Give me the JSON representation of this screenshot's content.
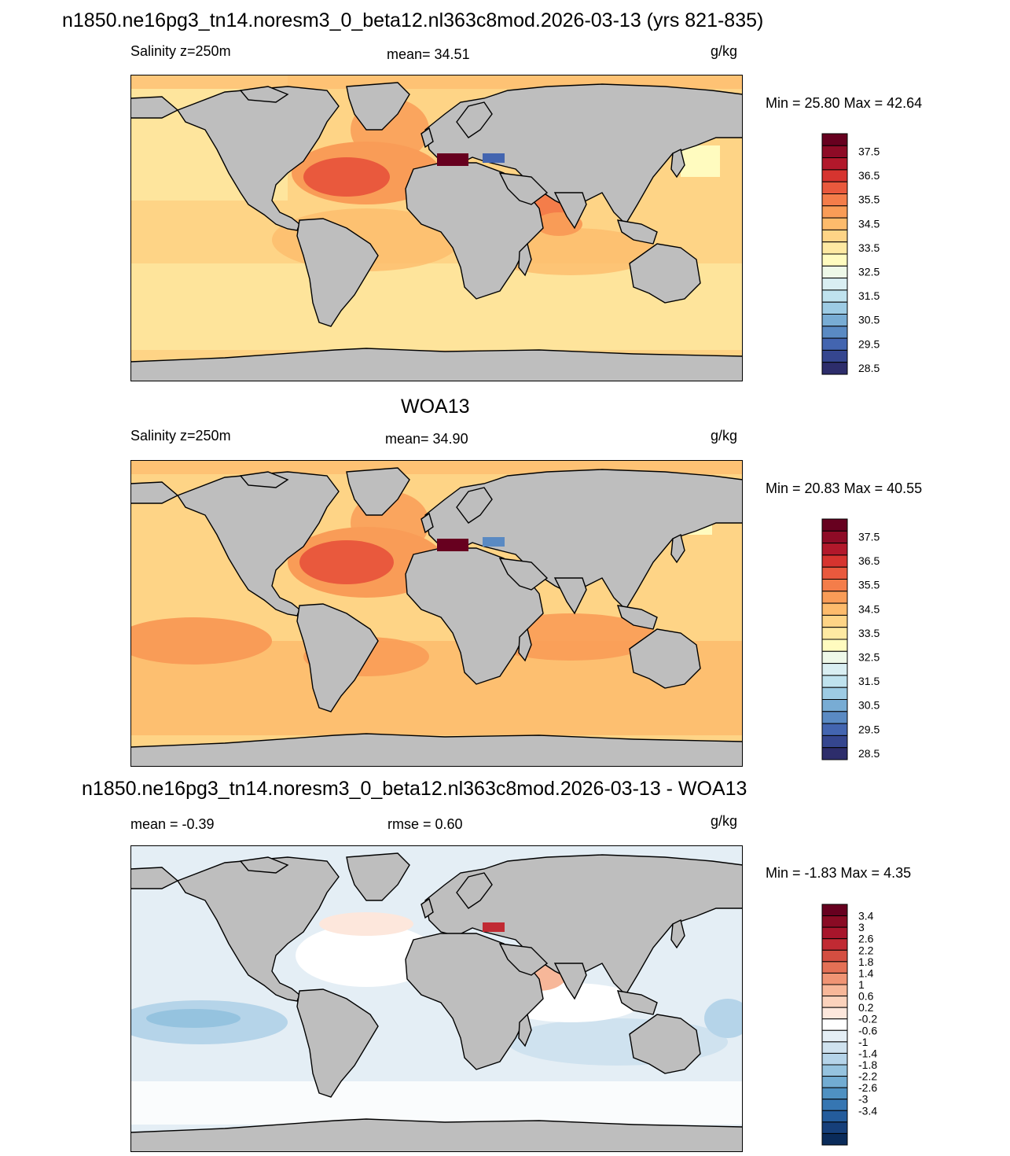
{
  "page": {
    "main_title": "n1850.ne16pg3_tn14.noresm3_0_beta12.nl363c8mod.2026-03-13 (yrs 821-835)"
  },
  "panels": [
    {
      "id": "model",
      "heading": "",
      "left_label": "Salinity z=250m",
      "center_label": "mean=  34.51",
      "units": "g/kg",
      "minmax": "Min =  25.80 Max =  42.64",
      "colorbar": {
        "labels": [
          "37.5",
          "36.5",
          "35.5",
          "34.5",
          "33.5",
          "32.5",
          "31.5",
          "30.5",
          "29.5",
          "28.5"
        ],
        "colors": [
          "#67001f",
          "#8e0b26",
          "#b2182b",
          "#d6342f",
          "#e9593d",
          "#f47d4a",
          "#f99c57",
          "#fdbb6c",
          "#fed486",
          "#fee9a2",
          "#fffbbf",
          "#eef8e8",
          "#d9eef2",
          "#bfe2ee",
          "#9dcbe4",
          "#78acd4",
          "#5a8ac3",
          "#4365b0",
          "#35468f",
          "#2d2d6b"
        ]
      },
      "palette_type": "absolute"
    },
    {
      "id": "obs",
      "heading": "WOA13",
      "left_label": "Salinity z=250m",
      "center_label": "mean=  34.90",
      "units": "g/kg",
      "minmax": "Min =  20.83 Max =  40.55",
      "colorbar": {
        "labels": [
          "37.5",
          "36.5",
          "35.5",
          "34.5",
          "33.5",
          "32.5",
          "31.5",
          "30.5",
          "29.5",
          "28.5"
        ],
        "colors": [
          "#67001f",
          "#8e0b26",
          "#b2182b",
          "#d6342f",
          "#e9593d",
          "#f47d4a",
          "#f99c57",
          "#fdbb6c",
          "#fed486",
          "#fee9a2",
          "#fffbbf",
          "#eef8e8",
          "#d9eef2",
          "#bfe2ee",
          "#9dcbe4",
          "#78acd4",
          "#5a8ac3",
          "#4365b0",
          "#35468f",
          "#2d2d6b"
        ]
      },
      "palette_type": "absolute"
    },
    {
      "id": "diff",
      "heading": "n1850.ne16pg3_tn14.noresm3_0_beta12.nl363c8mod.2026-03-13 - WOA13",
      "left_label": "mean =  -0.39",
      "center_label": "rmse =   0.60",
      "units": "g/kg",
      "minmax": "Min =  -1.83 Max =   4.35",
      "colorbar": {
        "labels": [
          "3.4",
          "3",
          "2.6",
          "2.2",
          "1.8",
          "1.4",
          "1",
          "0.6",
          "0.2",
          "-0.2",
          "-0.6",
          "-1",
          "-1.4",
          "-1.8",
          "-2.2",
          "-2.6",
          "-3",
          "-3.4"
        ],
        "colors": [
          "#67001f",
          "#8a0b24",
          "#a8152b",
          "#c12a33",
          "#d44e41",
          "#e47055",
          "#f09474",
          "#f7b799",
          "#fbd2bc",
          "#fde7dc",
          "#ffffff",
          "#e4eef5",
          "#cfe2ef",
          "#b5d4e9",
          "#95c3df",
          "#72acd2",
          "#4f91c2",
          "#3676b2",
          "#245c9c",
          "#163f7a",
          "#0a2b5a"
        ]
      },
      "palette_type": "difference"
    }
  ],
  "colors": {
    "land": "#bebebe",
    "coast": "#000000"
  }
}
